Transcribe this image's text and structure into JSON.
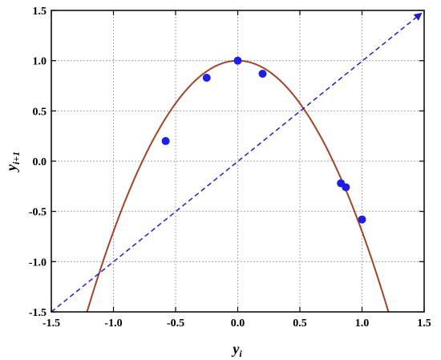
{
  "chart_data": {
    "type": "scatter",
    "title": "",
    "xlabel": {
      "base": "y",
      "sub": "i"
    },
    "ylabel": {
      "base": "y",
      "sub": "i+1"
    },
    "xlim": [
      -1.5,
      1.5
    ],
    "ylim": [
      -1.5,
      1.5
    ],
    "x_ticks": [
      "-1.5",
      "-1.0",
      "-0.5",
      "0.0",
      "0.5",
      "1.0",
      "1.5"
    ],
    "y_ticks": [
      "-1.5",
      "-1.0",
      "-0.5",
      "0.0",
      "0.5",
      "1.0",
      "1.5"
    ],
    "grid": true,
    "series": [
      {
        "kind": "points",
        "color": "#1e1ee6",
        "x": [
          -0.58,
          -0.25,
          0.0,
          0.2,
          0.83,
          0.87,
          1.0
        ],
        "y": [
          0.2,
          0.83,
          1.0,
          0.87,
          -0.22,
          -0.26,
          -0.58
        ]
      },
      {
        "kind": "curve",
        "color": "#a0442a",
        "formula": "y = 1 - 1.7 x^2",
        "a": 1.7,
        "x_range": [
          -1.22,
          1.22
        ]
      },
      {
        "kind": "identity-line",
        "color": "#2020c8",
        "style": "dashed",
        "formula": "y = x",
        "x": [
          -1.5,
          1.5
        ],
        "y": [
          -1.5,
          1.5
        ]
      }
    ]
  }
}
